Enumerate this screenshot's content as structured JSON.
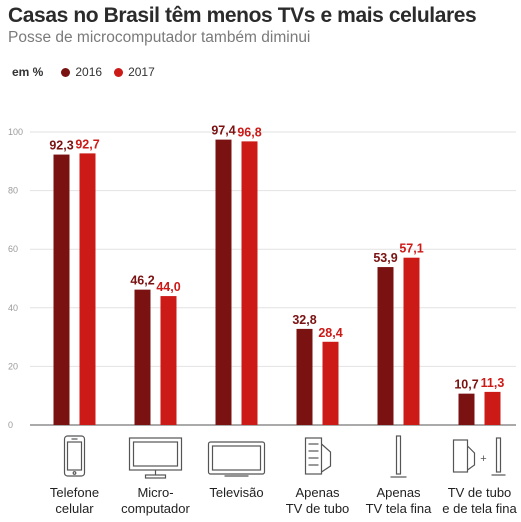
{
  "title": "Casas no Brasil têm menos TVs e mais celulares",
  "subtitle": "Posse de microcomputador também diminui",
  "legend": {
    "unit": "em %",
    "items": [
      {
        "label": "2016",
        "color": "#7b1212"
      },
      {
        "label": "2017",
        "color": "#cc1a17"
      }
    ]
  },
  "chart_data": {
    "type": "bar",
    "categories": [
      {
        "lines": [
          "Telefone",
          "celular"
        ],
        "icon": "smartphone-icon"
      },
      {
        "lines": [
          "Micro-",
          "computador"
        ],
        "icon": "desktop-computer-icon"
      },
      {
        "lines": [
          "Televisão"
        ],
        "icon": "television-icon"
      },
      {
        "lines": [
          "Apenas",
          "TV de tubo"
        ],
        "icon": "crt-tv-icon"
      },
      {
        "lines": [
          "Apenas",
          "TV tela fina"
        ],
        "icon": "flat-tv-icon"
      },
      {
        "lines": [
          "TV de tubo",
          "e de tela fina"
        ],
        "icon": "crt-and-flat-tv-icon"
      }
    ],
    "series": [
      {
        "name": "2016",
        "color": "#7b1212",
        "values": [
          92.3,
          46.2,
          97.4,
          32.8,
          53.9,
          10.7
        ],
        "labels": [
          "92,3",
          "46,2",
          "97,4",
          "32,8",
          "53,9",
          "10,7"
        ]
      },
      {
        "name": "2017",
        "color": "#cc1a17",
        "values": [
          92.7,
          44.0,
          96.8,
          28.4,
          57.1,
          11.3
        ],
        "labels": [
          "92,7",
          "44,0",
          "96,8",
          "28,4",
          "57,1",
          "11,3"
        ]
      }
    ],
    "ylim": [
      0,
      100
    ],
    "yticks": [
      0,
      20,
      40,
      60,
      80,
      100
    ],
    "grid": true
  }
}
